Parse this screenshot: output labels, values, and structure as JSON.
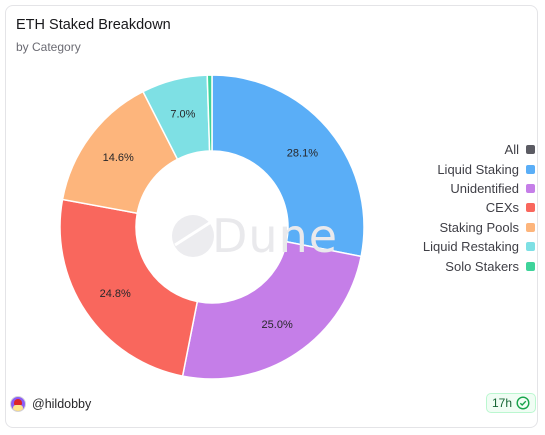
{
  "header": {
    "title": "ETH Staked Breakdown",
    "subtitle": "by Category"
  },
  "watermark": {
    "text": "Dune"
  },
  "chart_data": {
    "type": "pie",
    "donut": true,
    "categories": [
      "Liquid Staking",
      "Unidentified",
      "CEXs",
      "Staking Pools",
      "Liquid Restaking",
      "Solo Stakers"
    ],
    "values": [
      28.1,
      25.0,
      24.8,
      14.6,
      7.0,
      0.5
    ],
    "labels": [
      "28.1%",
      "25.0%",
      "24.8%",
      "14.6%",
      "7.0%",
      ""
    ],
    "colors": [
      "#5aaef7",
      "#c57ee8",
      "#f9675d",
      "#fdb57c",
      "#7ee0e4",
      "#3ed39a"
    ],
    "legend_placement": "right"
  },
  "legend": {
    "items": [
      {
        "label": "All",
        "color": "#5b5b63"
      },
      {
        "label": "Liquid Staking",
        "color": "#5aaef7"
      },
      {
        "label": "Unidentified",
        "color": "#c57ee8"
      },
      {
        "label": "CEXs",
        "color": "#f9675d"
      },
      {
        "label": "Staking Pools",
        "color": "#fdb57c"
      },
      {
        "label": "Liquid Restaking",
        "color": "#7ee0e4"
      },
      {
        "label": "Solo Stakers",
        "color": "#3ed39a"
      }
    ]
  },
  "footer": {
    "user": "@hildobby",
    "age": "17h"
  }
}
